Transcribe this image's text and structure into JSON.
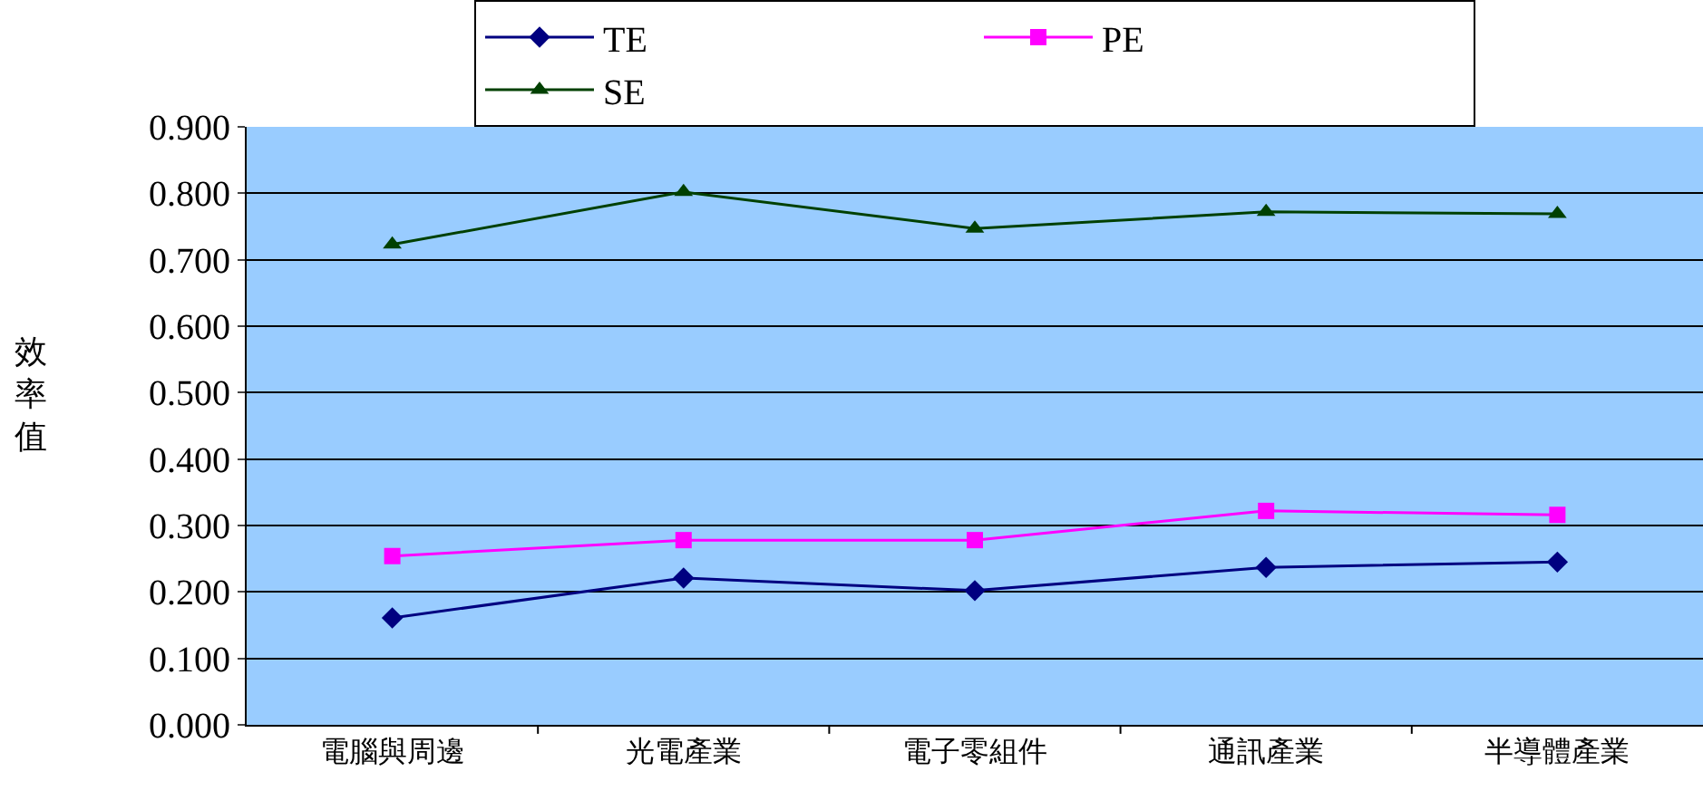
{
  "chart_data": {
    "type": "line",
    "ylabel": "效率值",
    "categories": [
      "電腦與周邊",
      "光電產業",
      "電子零組件",
      "通訊產業",
      "半導體產業"
    ],
    "series": [
      {
        "name": "TE",
        "color": "#000080",
        "marker": "diamond",
        "values": [
          0.161,
          0.221,
          0.202,
          0.237,
          0.245
        ]
      },
      {
        "name": "PE",
        "color": "#ff00ff",
        "marker": "square",
        "values": [
          0.254,
          0.278,
          0.278,
          0.322,
          0.316
        ]
      },
      {
        "name": "SE",
        "color": "#004000",
        "marker": "triangle",
        "values": [
          0.723,
          0.802,
          0.747,
          0.772,
          0.769
        ]
      }
    ],
    "ylim": [
      0,
      0.9
    ],
    "yticks": [
      {
        "value": 0,
        "label": "0.000"
      },
      {
        "value": 0.1,
        "label": "0.100"
      },
      {
        "value": 0.2,
        "label": "0.200"
      },
      {
        "value": 0.3,
        "label": "0.300"
      },
      {
        "value": 0.4,
        "label": "0.400"
      },
      {
        "value": 0.5,
        "label": "0.500"
      },
      {
        "value": 0.6,
        "label": "0.600"
      },
      {
        "value": 0.7,
        "label": "0.700"
      },
      {
        "value": 0.8,
        "label": "0.800"
      },
      {
        "value": 0.9,
        "label": "0.900"
      }
    ],
    "grid": "y",
    "legend": "top",
    "line_style": "solid"
  }
}
